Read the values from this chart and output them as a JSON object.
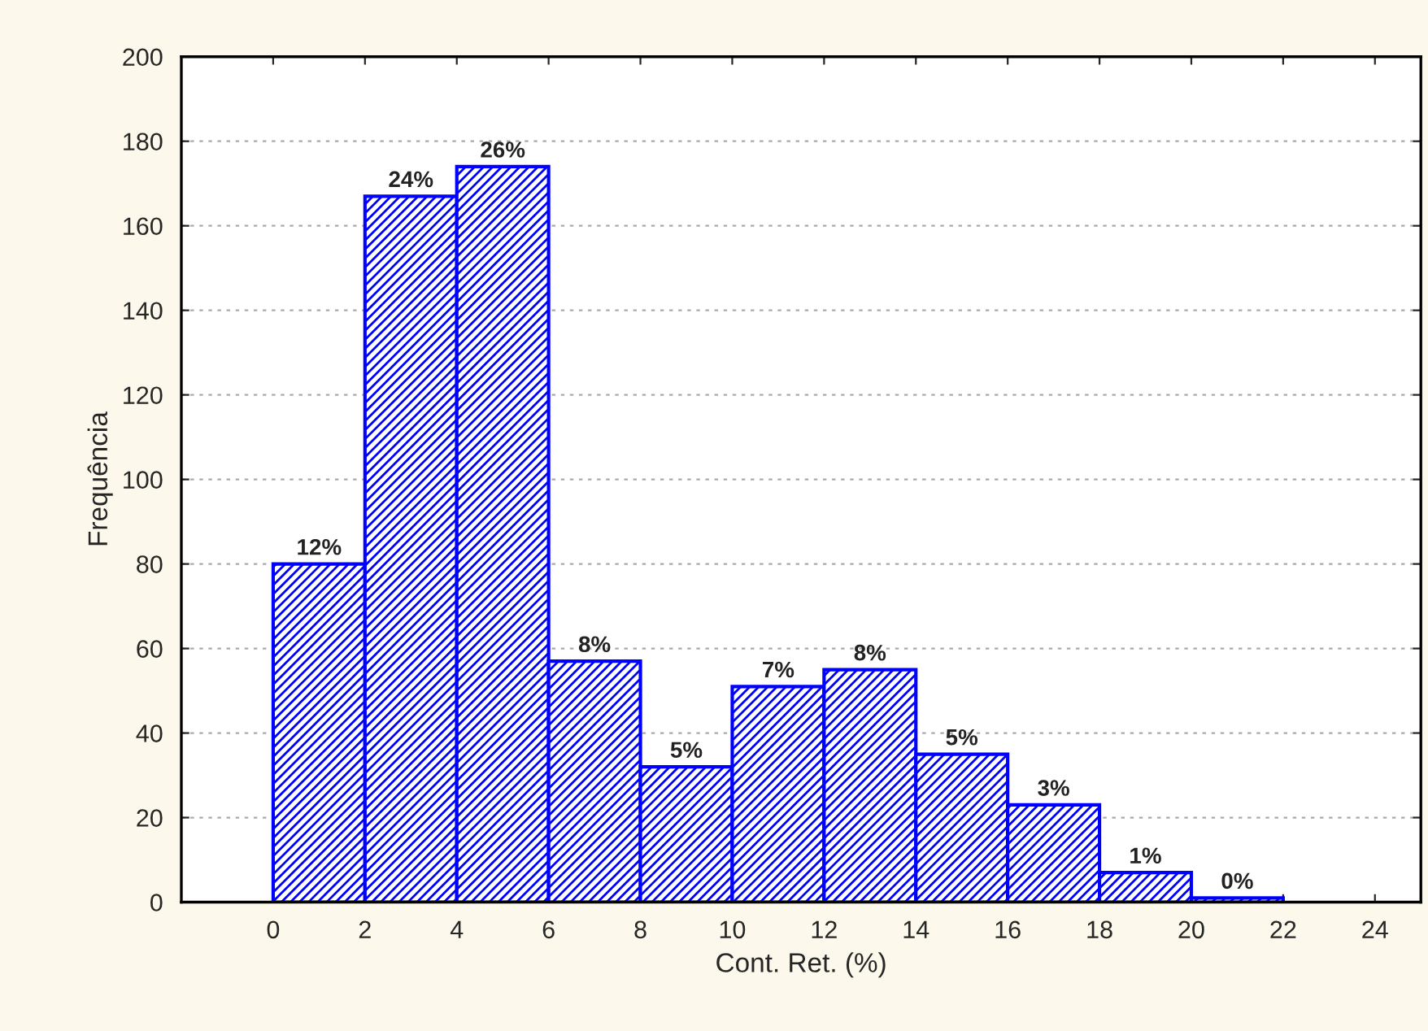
{
  "chart_data": {
    "type": "histogram",
    "xlabel": "Cont. Ret. (%)",
    "ylabel": "Frequência",
    "bins": [
      0,
      2,
      4,
      6,
      8,
      10,
      12,
      14,
      16,
      18,
      20,
      22
    ],
    "values": [
      80,
      167,
      174,
      57,
      32,
      51,
      55,
      35,
      23,
      7,
      1
    ],
    "annotations": [
      {
        "text": "12%",
        "x": 1,
        "y": 80
      },
      {
        "text": "24%",
        "x": 3,
        "y": 167
      },
      {
        "text": "26%",
        "x": 5,
        "y": 174
      },
      {
        "text": "8%",
        "x": 7,
        "y": 57
      },
      {
        "text": "5%",
        "x": 9,
        "y": 32
      },
      {
        "text": "7%",
        "x": 11,
        "y": 51
      },
      {
        "text": "8%",
        "x": 13,
        "y": 55
      },
      {
        "text": "5%",
        "x": 15,
        "y": 35
      },
      {
        "text": "3%",
        "x": 17,
        "y": 23
      },
      {
        "text": "1%",
        "x": 19,
        "y": 7
      },
      {
        "text": "0%",
        "x": 21,
        "y": 1
      }
    ],
    "color": "#0000ff",
    "xlim": [
      -2,
      25
    ],
    "xticks": [
      0,
      2,
      4,
      6,
      8,
      10,
      12,
      14,
      16,
      18,
      20,
      22,
      24
    ],
    "ylim": [
      0,
      200
    ],
    "yticks": [
      0,
      20,
      40,
      60,
      80,
      100,
      120,
      140,
      160,
      180,
      200
    ],
    "grid": "y"
  }
}
